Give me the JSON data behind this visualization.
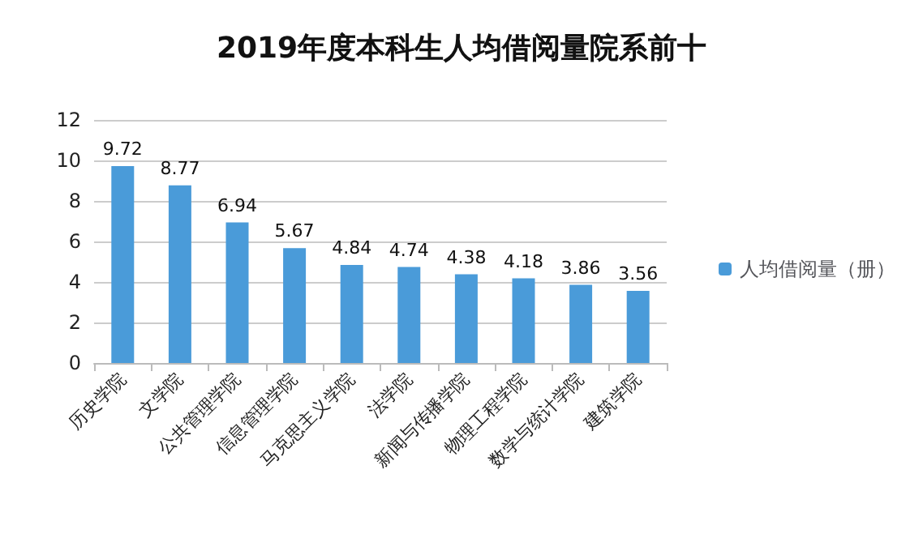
{
  "chart_data": {
    "type": "bar",
    "title": "2019年度本科生人均借阅量院系前十",
    "categories": [
      "历史学院",
      "文学院",
      "公共管理学院",
      "信息管理学院",
      "马克思主义学院",
      "法学院",
      "新闻与传播学院",
      "物理工程学院",
      "数学与统计学院",
      "建筑学院"
    ],
    "series": [
      {
        "name": "人均借阅量（册）",
        "color": "#4a9bd9",
        "values": [
          9.72,
          8.77,
          6.94,
          5.67,
          4.84,
          4.74,
          4.38,
          4.18,
          3.86,
          3.56
        ]
      }
    ],
    "ylim": [
      0,
      12
    ],
    "yticks": [
      0,
      2,
      4,
      6,
      8,
      10,
      12
    ],
    "grid": "y",
    "legend": "right",
    "data_labels": true
  }
}
